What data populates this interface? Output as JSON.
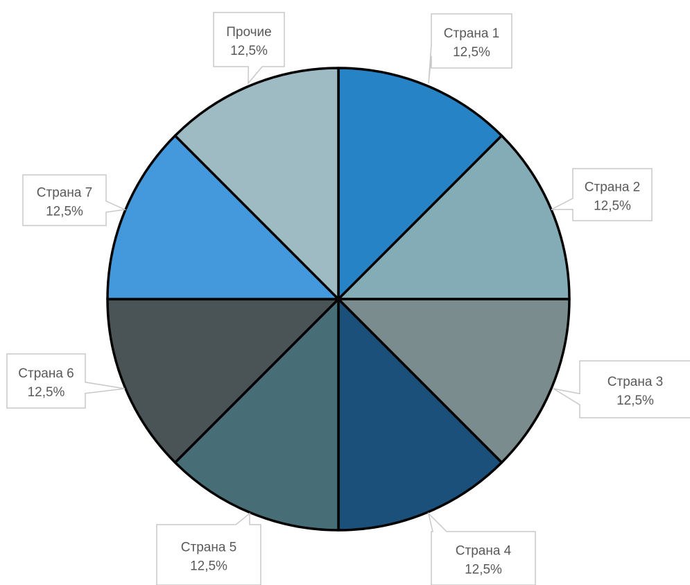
{
  "chart_data": {
    "type": "pie",
    "title": "",
    "start_angle_deg": 0,
    "direction": "clockwise",
    "slices": [
      {
        "label": "Страна 1",
        "value": 12.5,
        "value_label": "12,5%",
        "color": "#2683c6"
      },
      {
        "label": "Страна 2",
        "value": 12.5,
        "value_label": "12,5%",
        "color": "#84acb6"
      },
      {
        "label": "Страна 3",
        "value": 12.5,
        "value_label": "12,5%",
        "color": "#7a8c8e"
      },
      {
        "label": "Страна 4",
        "value": 12.5,
        "value_label": "12,5%",
        "color": "#1a5079"
      },
      {
        "label": "Страна 5",
        "value": 12.5,
        "value_label": "12,5%",
        "color": "#476e77"
      },
      {
        "label": "Страна 6",
        "value": 12.5,
        "value_label": "12,5%",
        "color": "#4a5355"
      },
      {
        "label": "Страна 7",
        "value": 12.5,
        "value_label": "12,5%",
        "color": "#4499dd"
      },
      {
        "label": "Прочие",
        "value": 12.5,
        "value_label": "12,5%",
        "color": "#9ebbc3"
      }
    ],
    "slice_border_color": "#000000",
    "callout_border_color": "#c8c8c8",
    "label_color": "#595959"
  }
}
